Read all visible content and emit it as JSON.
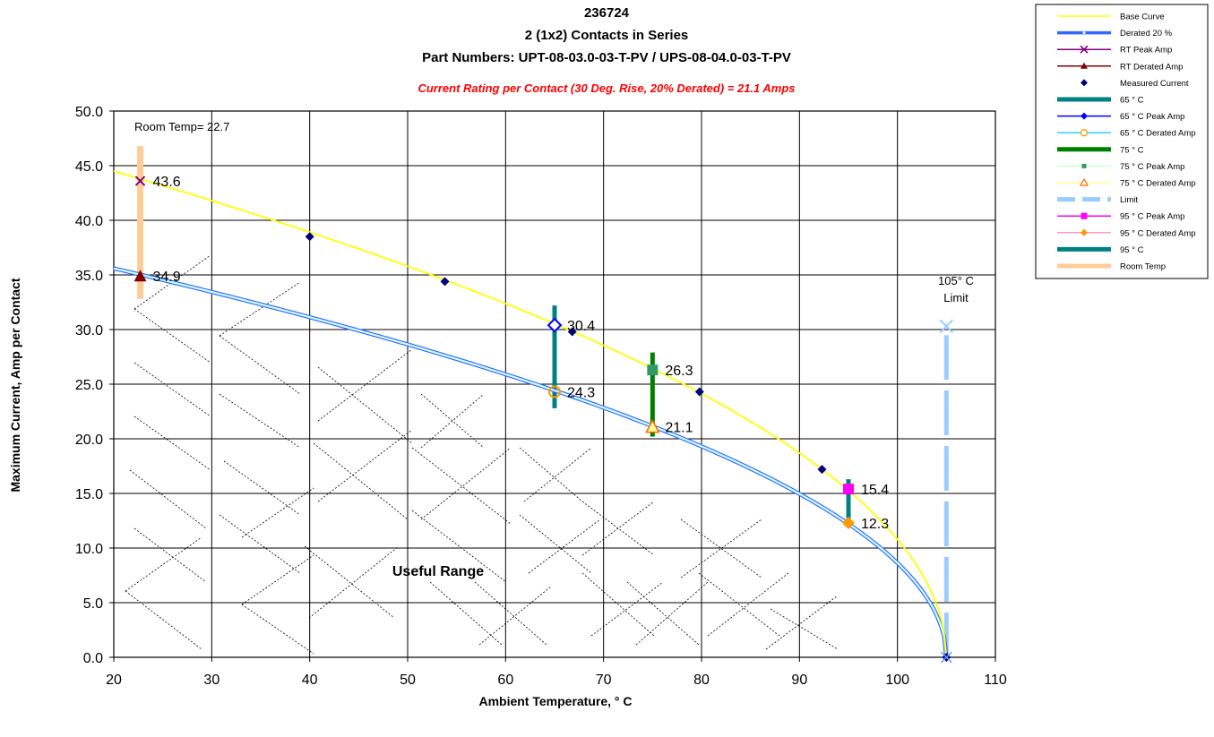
{
  "chart_data": {
    "type": "line",
    "title_lines": [
      "236724",
      "2 (1x2) Contacts in Series",
      "Part Numbers: UPT-08-03.0-03-T-PV / UPS-08-04.0-03-T-PV"
    ],
    "subtitle": "Current Rating per Contact (30 Deg. Rise, 20% Derated)  = 21.1 Amps",
    "xlabel": "Ambient Temperature,  ° C",
    "ylabel": "Maximum Current, Amp per Contact",
    "xlim": [
      20,
      110
    ],
    "ylim": [
      0,
      50
    ],
    "x_ticks": [
      20,
      30,
      40,
      50,
      60,
      70,
      80,
      90,
      100,
      110
    ],
    "y_ticks": [
      0,
      5,
      10,
      15,
      20,
      25,
      30,
      35,
      40,
      45,
      50
    ],
    "x_tick_labels": [
      "20",
      "30",
      "40",
      "50",
      "60",
      "70",
      "80",
      "90",
      "100",
      "110"
    ],
    "y_tick_labels": [
      "0.0",
      "5.0",
      "10.0",
      "15.0",
      "20.0",
      "25.0",
      "30.0",
      "35.0",
      "40.0",
      "45.0",
      "50.0"
    ],
    "grid": true,
    "legend_position": "top-right",
    "curve": {
      "max_temp": 105,
      "base_at_20": 44.5,
      "base_at_105": 0
    },
    "measured_current": [
      {
        "x": 40,
        "y": 38.5
      },
      {
        "x": 53.8,
        "y": 34.4
      },
      {
        "x": 66.8,
        "y": 29.8
      },
      {
        "x": 79.8,
        "y": 24.3
      },
      {
        "x": 92.3,
        "y": 17.2
      },
      {
        "x": 105,
        "y": 0
      }
    ],
    "points": [
      {
        "name": "RT Peak Amp",
        "x": 22.7,
        "y": 43.6,
        "label": "43.6"
      },
      {
        "name": "RT Derated Amp",
        "x": 22.7,
        "y": 34.9,
        "label": "34.9"
      },
      {
        "name": "65 ° C Peak Amp",
        "x": 65,
        "y": 30.4,
        "label": "30.4"
      },
      {
        "name": "65 ° C Derated Amp",
        "x": 65,
        "y": 24.3,
        "label": "24.3"
      },
      {
        "name": "75 ° C Peak Amp",
        "x": 75,
        "y": 26.3,
        "label": "26.3"
      },
      {
        "name": "75 ° C Derated Amp",
        "x": 75,
        "y": 21.1,
        "label": "21.1"
      },
      {
        "name": "95 ° C Peak Amp",
        "x": 95,
        "y": 15.4,
        "label": "15.4"
      },
      {
        "name": "95 ° C Derated Amp",
        "x": 95,
        "y": 12.3,
        "label": "12.3"
      }
    ],
    "bars": [
      {
        "name": "Room Temp",
        "x": 22.7,
        "y0": 32.8,
        "y1": 46.8,
        "color": "#ffcc99"
      },
      {
        "name": "65 ° C",
        "x": 65,
        "y0": 22.8,
        "y1": 32.2,
        "color": "#008080"
      },
      {
        "name": "75 ° C",
        "x": 75,
        "y0": 20.2,
        "y1": 27.9,
        "color": "#008000"
      },
      {
        "name": "95 ° C",
        "x": 95,
        "y0": 11.9,
        "y1": 16.3,
        "color": "#008080"
      }
    ],
    "limit": {
      "x": 105,
      "y0": 0,
      "y1": 30.3,
      "color": "#99ccff"
    },
    "annotations": {
      "room_temp": "Room Temp= 22.7",
      "limit_line1": "105° C",
      "limit_line2": "Limit",
      "useful_range": "Useful Range"
    },
    "legend": [
      {
        "label": "Base Curve",
        "color": "#ffff00",
        "kind": "line"
      },
      {
        "label": "Derated 20 %",
        "color": "#3366ff",
        "kind": "line-dot"
      },
      {
        "label": "RT Peak Amp",
        "color": "#800080",
        "kind": "x"
      },
      {
        "label": "RT Derated Amp",
        "color": "#800000",
        "kind": "triangle"
      },
      {
        "label": "Measured Current",
        "color": "#000080",
        "kind": "diamond-only"
      },
      {
        "label": "65 ° C",
        "color": "#008080",
        "kind": "thick"
      },
      {
        "label": "65  ° C Peak Amp",
        "color": "#0000ff",
        "kind": "diamond"
      },
      {
        "label": "65  ° C Derated Amp",
        "color": "#33ccff",
        "kind": "circle"
      },
      {
        "label": "75  ° C",
        "color": "#008000",
        "kind": "thick"
      },
      {
        "label": "75  ° C Peak Amp",
        "color": "#ccffcc",
        "kind": "square"
      },
      {
        "label": "75  ° C Derated Amp",
        "color": "#ffff99",
        "kind": "triangle-open"
      },
      {
        "label": "Limit",
        "color": "#99ccff",
        "kind": "dash"
      },
      {
        "label": "95  ° C Peak Amp",
        "color": "#ff00ff",
        "kind": "square-fill"
      },
      {
        "label": "95  ° C Derated Amp",
        "color": "#ff99cc",
        "kind": "diamond-orange"
      },
      {
        "label": "95  ° C",
        "color": "#008080",
        "kind": "thick"
      },
      {
        "label": "Room Temp",
        "color": "#ffcc99",
        "kind": "thick"
      }
    ]
  }
}
